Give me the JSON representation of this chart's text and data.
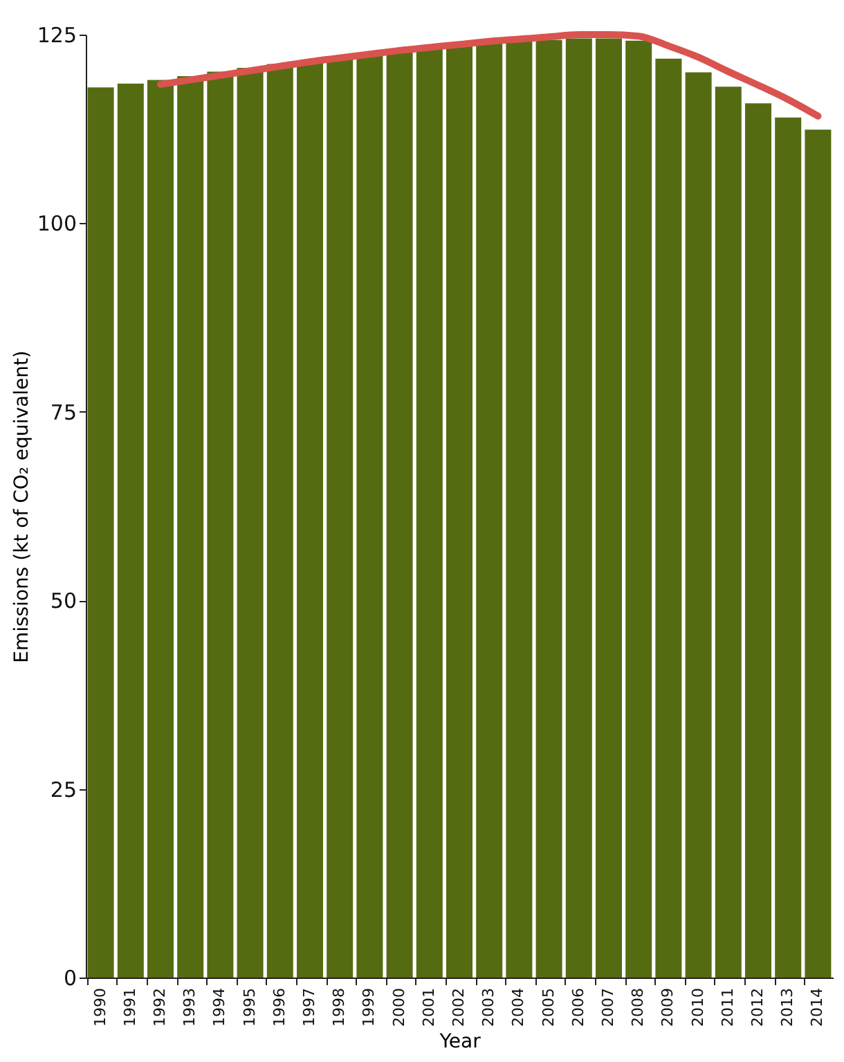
{
  "chart_data": {
    "type": "bar",
    "xlabel": "Year",
    "ylabel": "Emissions (kt of CO₂ equivalent)",
    "categories": [
      "1990",
      "1991",
      "1992",
      "1993",
      "1994",
      "1995",
      "1996",
      "1997",
      "1998",
      "1999",
      "2000",
      "2001",
      "2002",
      "2003",
      "2004",
      "2005",
      "2006",
      "2007",
      "2008",
      "2009",
      "2010",
      "2011",
      "2012",
      "2013",
      "2014"
    ],
    "series": [
      {
        "color": "#556b12",
        "values": [
          118.0,
          118.5,
          119.0,
          119.5,
          120.1,
          120.6,
          121.1,
          121.6,
          122.1,
          122.6,
          123.1,
          123.3,
          123.6,
          123.9,
          124.1,
          124.3,
          124.5,
          124.5,
          124.2,
          121.8,
          120.0,
          118.1,
          115.9,
          114.0,
          112.4
        ]
      },
      {
        "type": "line",
        "color": "#d9534f",
        "values": [
          null,
          null,
          118.4,
          119.0,
          119.6,
          120.2,
          120.8,
          121.4,
          121.9,
          122.4,
          122.9,
          123.3,
          123.7,
          124.1,
          124.4,
          124.7,
          125.0,
          125.0,
          124.8,
          123.5,
          122.0,
          120.1,
          118.3,
          116.4,
          114.2
        ]
      }
    ],
    "ylim": [
      0,
      125
    ],
    "yticks": [
      0,
      25,
      50,
      75,
      100,
      125
    ],
    "grid": false
  }
}
